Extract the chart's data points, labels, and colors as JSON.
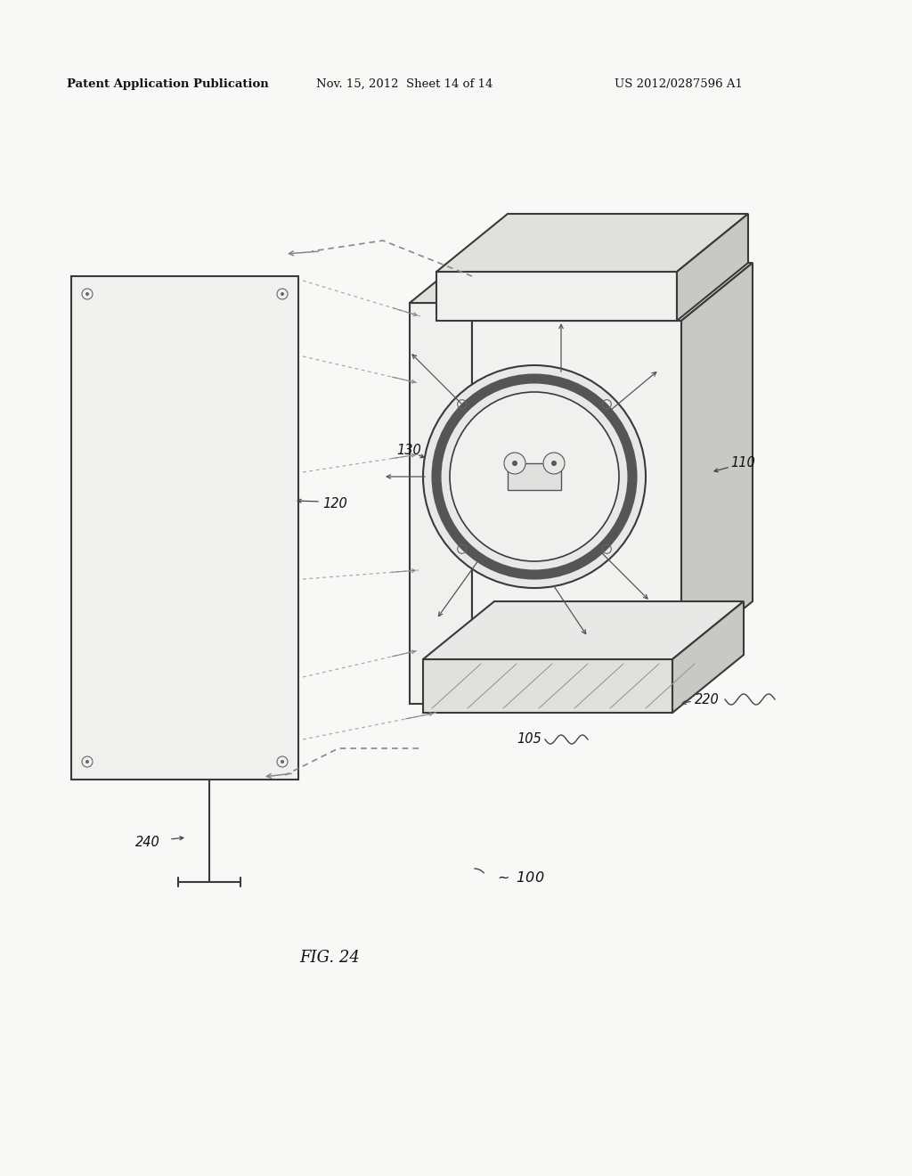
{
  "header_left": "Patent Application Publication",
  "header_mid": "Nov. 15, 2012  Sheet 14 of 14",
  "header_right": "US 2012/0287596 A1",
  "fig_caption": "FIG. 24",
  "bg_color": "#f8f8f6",
  "line_color": "#3a3a3a",
  "light_fill": "#f0f0ee",
  "mid_fill": "#e0e0dc",
  "dark_fill": "#c8c8c4"
}
